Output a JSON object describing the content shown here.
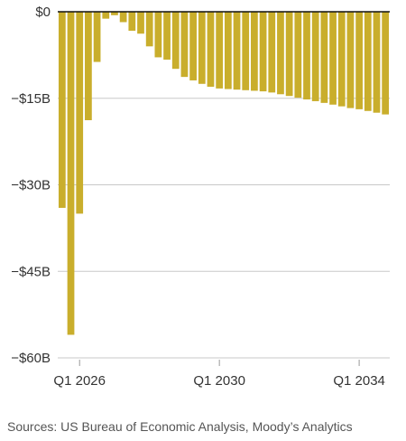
{
  "source_note": "Sources: US Bureau of Economic Analysis, Moody’s Analytics",
  "colors": {
    "bar": "#C9AE2C",
    "grid": "#C8C8C8",
    "zero_line": "#111111",
    "text": "#333333"
  },
  "chart_data": {
    "type": "bar",
    "title": "",
    "xlabel": "",
    "ylabel": "",
    "grid": true,
    "ylim": [
      -60,
      0
    ],
    "y_ticks": [
      {
        "value": 0,
        "label": "$0"
      },
      {
        "value": -15,
        "label": "−$15B"
      },
      {
        "value": -30,
        "label": "−$30B"
      },
      {
        "value": -45,
        "label": "−$45B"
      },
      {
        "value": -60,
        "label": "−$60B"
      }
    ],
    "x_ticks": [
      {
        "category": "Q1 2026",
        "label": "Q1 2026"
      },
      {
        "category": "Q1 2030",
        "label": "Q1 2030"
      },
      {
        "category": "Q1 2034",
        "label": "Q1 2034"
      }
    ],
    "categories": [
      "Q3 2025",
      "Q4 2025",
      "Q1 2026",
      "Q2 2026",
      "Q3 2026",
      "Q4 2026",
      "Q1 2027",
      "Q2 2027",
      "Q3 2027",
      "Q4 2027",
      "Q1 2028",
      "Q2 2028",
      "Q3 2028",
      "Q4 2028",
      "Q1 2029",
      "Q2 2029",
      "Q3 2029",
      "Q4 2029",
      "Q1 2030",
      "Q2 2030",
      "Q3 2030",
      "Q4 2030",
      "Q1 2031",
      "Q2 2031",
      "Q3 2031",
      "Q4 2031",
      "Q1 2032",
      "Q2 2032",
      "Q3 2032",
      "Q4 2032",
      "Q1 2033",
      "Q2 2033",
      "Q3 2033",
      "Q4 2033",
      "Q1 2034",
      "Q2 2034",
      "Q3 2034",
      "Q4 2034"
    ],
    "values": [
      -34.0,
      -56.0,
      -35.0,
      -18.8,
      -8.7,
      -1.2,
      -0.6,
      -1.8,
      -3.3,
      -3.8,
      -6.0,
      -7.9,
      -8.3,
      -9.9,
      -11.3,
      -11.9,
      -12.5,
      -13.0,
      -13.3,
      -13.4,
      -13.5,
      -13.6,
      -13.7,
      -13.8,
      -14.0,
      -14.3,
      -14.6,
      -14.9,
      -15.2,
      -15.5,
      -15.8,
      -16.1,
      -16.4,
      -16.7,
      -16.9,
      -17.2,
      -17.5,
      -17.8
    ]
  }
}
